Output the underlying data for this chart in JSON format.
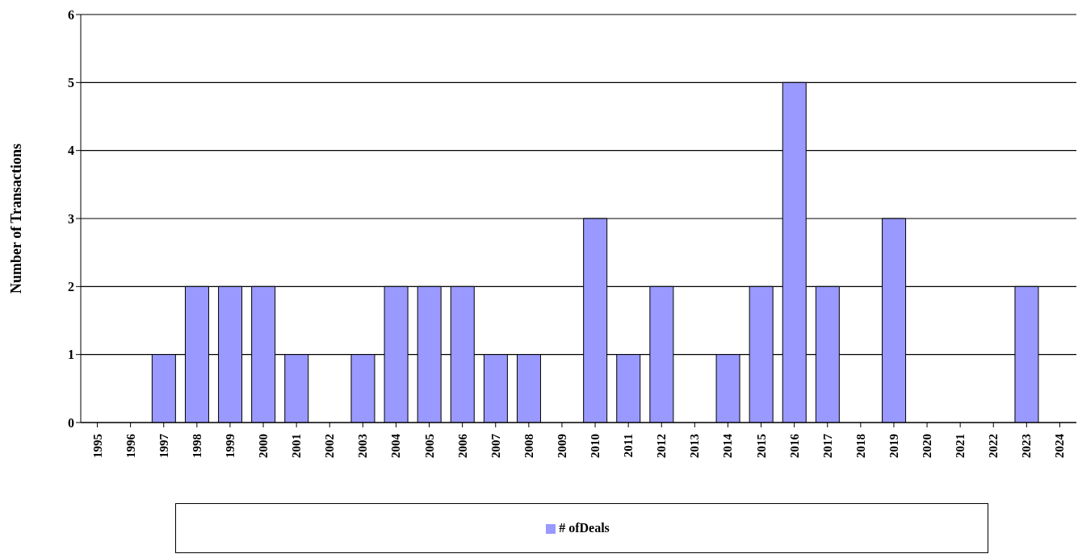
{
  "chart_data": {
    "type": "bar",
    "ylabel": "Number of Transactions",
    "categories": [
      "1995",
      "1996",
      "1997",
      "1998",
      "1999",
      "2000",
      "2001",
      "2002",
      "2003",
      "2004",
      "2005",
      "2006",
      "2007",
      "2008",
      "2009",
      "2010",
      "2011",
      "2012",
      "2013",
      "2014",
      "2015",
      "2016",
      "2017",
      "2018",
      "2019",
      "2020",
      "2021",
      "2022",
      "2023",
      "2024"
    ],
    "series": [
      {
        "name": "# ofDeals",
        "color": "#9999ff",
        "values": [
          0,
          0,
          1,
          2,
          2,
          2,
          1,
          0,
          1,
          2,
          2,
          2,
          1,
          1,
          0,
          3,
          1,
          2,
          0,
          1,
          2,
          5,
          2,
          0,
          3,
          0,
          0,
          0,
          2,
          0
        ]
      }
    ],
    "ylim": [
      0,
      6
    ],
    "yticks": [
      0,
      1,
      2,
      3,
      4,
      5,
      6
    ],
    "grid": "y",
    "legend": "bottom"
  }
}
